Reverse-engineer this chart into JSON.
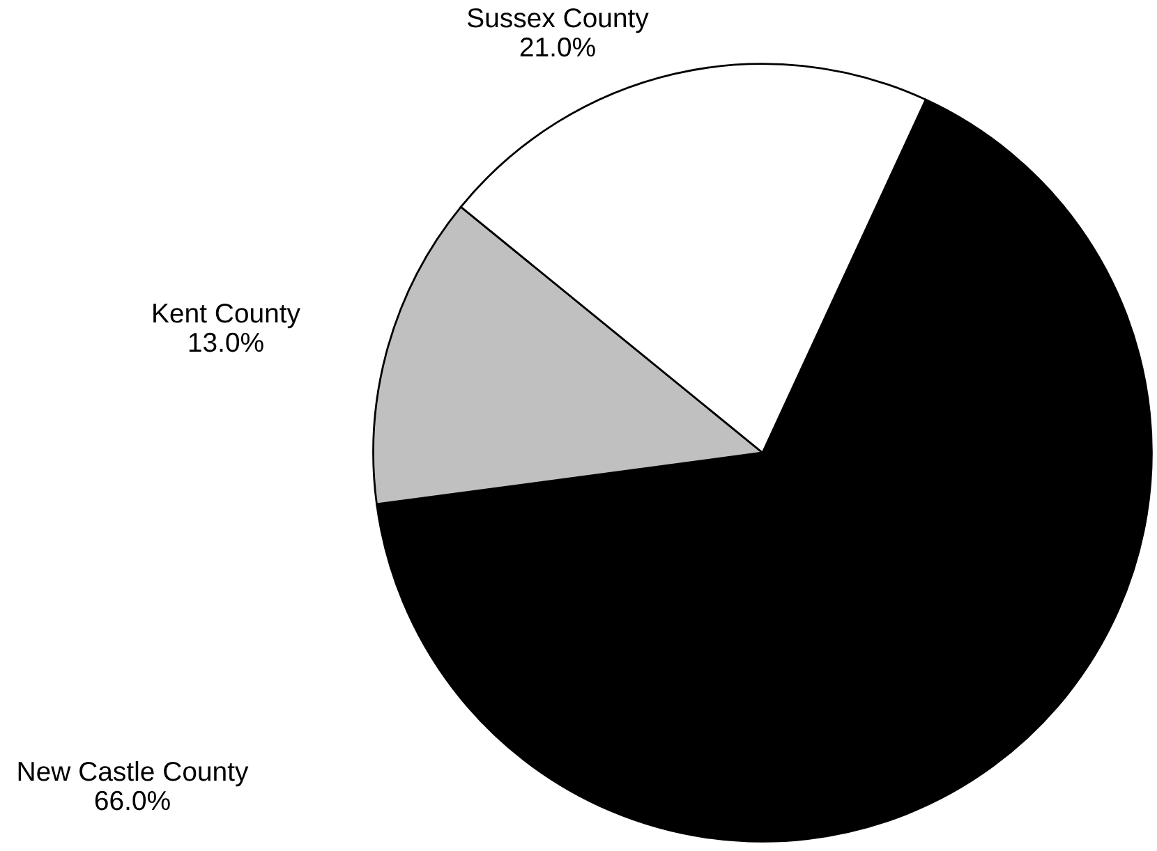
{
  "chart_data": {
    "type": "pie",
    "categories": [
      "New Castle County",
      "Kent County",
      "Sussex County"
    ],
    "values": [
      66.0,
      13.0,
      21.0
    ],
    "value_labels": [
      "66.0%",
      "13.0%",
      "21.0%"
    ],
    "colors": [
      "#000000",
      "#c0c0c0",
      "#ffffff"
    ]
  }
}
